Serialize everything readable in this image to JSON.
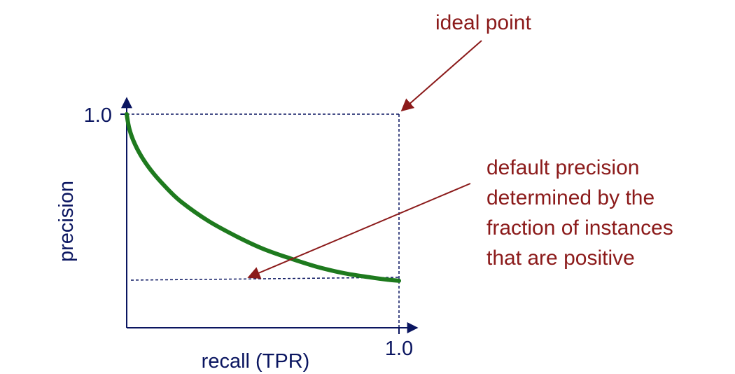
{
  "axes": {
    "y_tick_max": "1.0",
    "x_tick_max": "1.0",
    "y_label": "precision",
    "x_label": "recall (TPR)"
  },
  "annotations": {
    "ideal_point": "ideal point",
    "default_precision_lines": [
      "default precision",
      "determined by the",
      "fraction of instances",
      "that are positive"
    ]
  },
  "colors": {
    "axis": "#0a1560",
    "curve": "#1e7a1e",
    "annotation": "#8b1a1a",
    "guide": "#0a1560"
  },
  "chart_data": {
    "type": "line",
    "xlabel": "recall (TPR)",
    "ylabel": "precision",
    "xlim": [
      0,
      1.0
    ],
    "ylim": [
      0,
      1.0
    ],
    "x_ticks": [
      "1.0"
    ],
    "y_ticks": [
      "1.0"
    ],
    "baseline_precision": 0.22,
    "series": [
      {
        "x": [
          0.0,
          0.01,
          0.03,
          0.06,
          0.1,
          0.15,
          0.2,
          0.3,
          0.4,
          0.5,
          0.6,
          0.7,
          0.8,
          0.9,
          0.96,
          1.0
        ],
        "y": [
          1.0,
          0.93,
          0.86,
          0.79,
          0.72,
          0.65,
          0.59,
          0.5,
          0.43,
          0.37,
          0.325,
          0.285,
          0.255,
          0.235,
          0.225,
          0.22
        ]
      }
    ]
  }
}
